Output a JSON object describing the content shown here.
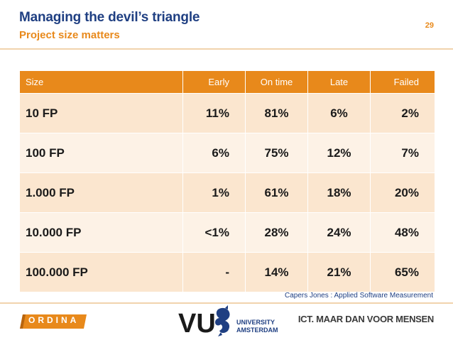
{
  "slide": {
    "title": "Managing the devil’s triangle",
    "subtitle": "Project size matters",
    "page_number": "29"
  },
  "table": {
    "headers": [
      "Size",
      "Early",
      "On time",
      "Late",
      "Failed"
    ],
    "rows": [
      [
        "10 FP",
        "11%",
        "81%",
        "6%",
        "2%"
      ],
      [
        "100 FP",
        "6%",
        "75%",
        "12%",
        "7%"
      ],
      [
        "1.000 FP",
        "1%",
        "61%",
        "18%",
        "20%"
      ],
      [
        "10.000 FP",
        "<1%",
        "28%",
        "24%",
        "48%"
      ],
      [
        "100.000 FP",
        "-",
        "14%",
        "21%",
        "65%"
      ]
    ]
  },
  "source": "Capers Jones : Applied Software Measurement",
  "footer": {
    "ordina": "ORDINA",
    "vu_mark": "VU",
    "university_line1": "UNIVERSITY",
    "university_line2": "AMSTERDAM",
    "tagline": "ICT. MAAR DAN VOOR MENSEN"
  },
  "colors": {
    "title": "#1f3f82",
    "accent": "#e8891b",
    "row_light": "#fbe6cf",
    "row_lighter": "#fdf2e6"
  }
}
